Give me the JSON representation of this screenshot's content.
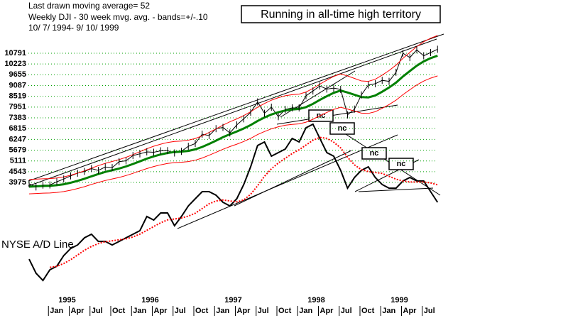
{
  "chart_data": {
    "type": "line",
    "title": "Running in all-time high territory",
    "header_lines": [
      "Last drawn moving average= 52",
      "Weekly DJI - 30 week mvg. avg. - bands=+/-.10",
      "10/ 7/ 1994- 9/ 10/ 1999"
    ],
    "categories": [
      null,
      null,
      null,
      "Jan",
      null,
      null,
      "Apr",
      null,
      null,
      "Jul",
      null,
      null,
      "Oct",
      null,
      null,
      "Jan",
      null,
      null,
      "Apr",
      null,
      null,
      "Jul",
      null,
      null,
      "Oct",
      null,
      null,
      "Jan",
      null,
      null,
      "Apr",
      null,
      null,
      "Jul",
      null,
      null,
      "Oct",
      null,
      null,
      "Jan",
      null,
      null,
      "Apr",
      null,
      null,
      "Jul",
      null,
      null,
      "Oct",
      null,
      null,
      "Jan",
      null,
      null,
      "Apr",
      null,
      null,
      "Jul",
      null,
      null
    ],
    "year_labels": [
      "1995",
      "1996",
      "1997",
      "1998",
      "1999"
    ],
    "ylim": [
      -2500,
      12100
    ],
    "yticks": [
      3975,
      4543,
      5111,
      5679,
      6247,
      6815,
      7383,
      7951,
      8519,
      9087,
      9655,
      10223,
      10791
    ],
    "grid": true,
    "grid_color": "#00a000",
    "annotations": [
      "nc",
      "nc",
      "nc",
      "nc"
    ],
    "series": [
      {
        "color": "#000000",
        "values": [
          3900,
          3740,
          3834,
          3843,
          4011,
          4157,
          4321,
          4465,
          4556,
          4708,
          4610,
          4789,
          4756,
          5074,
          5117,
          5395,
          5485,
          5587,
          5569,
          5643,
          5654,
          5529,
          5616,
          5882,
          6029,
          6521,
          6448,
          6813,
          6877,
          6584,
          7009,
          7331,
          7673,
          8223,
          7622,
          7945,
          7442,
          7823,
          7908,
          7907,
          8546,
          8800,
          9063,
          8900,
          8952,
          8883,
          7539,
          7843,
          8592,
          9117,
          9181,
          9359,
          9307,
          9786,
          10789,
          10560,
          10971,
          10655,
          10829,
          11000
        ]
      },
      {
        "color": "#008000",
        "width": 3,
        "values": [
          3750,
          3770,
          3790,
          3800,
          3830,
          3880,
          3960,
          4060,
          4170,
          4300,
          4420,
          4530,
          4620,
          4710,
          4820,
          4950,
          5090,
          5230,
          5350,
          5450,
          5530,
          5580,
          5600,
          5640,
          5720,
          5850,
          6010,
          6180,
          6360,
          6520,
          6660,
          6820,
          7000,
          7220,
          7400,
          7560,
          7680,
          7770,
          7820,
          7850,
          7950,
          8120,
          8330,
          8520,
          8700,
          8820,
          8720,
          8600,
          8480,
          8460,
          8560,
          8760,
          8980,
          9240,
          9560,
          9850,
          10130,
          10360,
          10530,
          10660
        ]
      },
      {
        "color": "#ff0000",
        "values": [
          4125,
          4147,
          4169,
          4180,
          4213,
          4268,
          4356,
          4466,
          4587,
          4730,
          4862,
          4983,
          5082,
          5181,
          5302,
          5445,
          5599,
          5753,
          5885,
          5995,
          6083,
          6138,
          6160,
          6204,
          6292,
          6435,
          6611,
          6798,
          6996,
          7172,
          7326,
          7502,
          7700,
          7942,
          8140,
          8316,
          8448,
          8547,
          8602,
          8635,
          8745,
          8932,
          9163,
          9372,
          9570,
          9702,
          9592,
          9460,
          9328,
          9306,
          9416,
          9636,
          9878,
          10164,
          10516,
          10835,
          11143,
          11396,
          11583,
          11726
        ]
      },
      {
        "color": "#ff0000",
        "values": [
          3375,
          3393,
          3411,
          3420,
          3447,
          3492,
          3564,
          3654,
          3753,
          3870,
          3978,
          4077,
          4158,
          4239,
          4338,
          4455,
          4581,
          4707,
          4815,
          4905,
          4977,
          5022,
          5040,
          5076,
          5148,
          5265,
          5409,
          5562,
          5724,
          5868,
          5994,
          6138,
          6300,
          6498,
          6660,
          6804,
          6912,
          6993,
          7038,
          7065,
          7155,
          7308,
          7497,
          7668,
          7830,
          7938,
          7848,
          7740,
          7632,
          7614,
          7704,
          7884,
          8082,
          8316,
          8604,
          8865,
          9117,
          9324,
          9477,
          9594
        ]
      },
      {
        "name": "NYSE A/D Line",
        "color": "#000000",
        "width": 2,
        "values": [
          -69,
          -817,
          -1192,
          -630,
          -443,
          119,
          493,
          680,
          1055,
          1242,
          867,
          867,
          680,
          867,
          1055,
          1242,
          1429,
          2178,
          1991,
          2365,
          2365,
          1691,
          2178,
          2739,
          3114,
          3488,
          3488,
          3301,
          2927,
          2739,
          3114,
          3863,
          4799,
          5922,
          6109,
          5360,
          5547,
          5735,
          6296,
          6109,
          6858,
          7045,
          6296,
          5547,
          5360,
          4611,
          3675,
          4237,
          4611,
          4799,
          4237,
          3863,
          3675,
          3675,
          4050,
          4237,
          4050,
          4050,
          3488,
          2927
        ]
      },
      {
        "color": "#ff0000",
        "width": 2,
        "line_style": "dotted",
        "values": [
          null,
          null,
          null,
          -500,
          -450,
          -300,
          -100,
          150,
          400,
          600,
          750,
          850,
          900,
          950,
          1000,
          1100,
          1250,
          1450,
          1650,
          1850,
          2000,
          2050,
          2100,
          2200,
          2350,
          2600,
          2850,
          3000,
          3050,
          3000,
          2950,
          3050,
          3350,
          3800,
          4300,
          4700,
          5000,
          5250,
          5500,
          5700,
          5950,
          6200,
          6350,
          6300,
          6100,
          5800,
          5300,
          4900,
          4650,
          4550,
          4500,
          4450,
          4300,
          4150,
          4050,
          4000,
          4000,
          4000,
          3950,
          3850
        ]
      }
    ]
  }
}
